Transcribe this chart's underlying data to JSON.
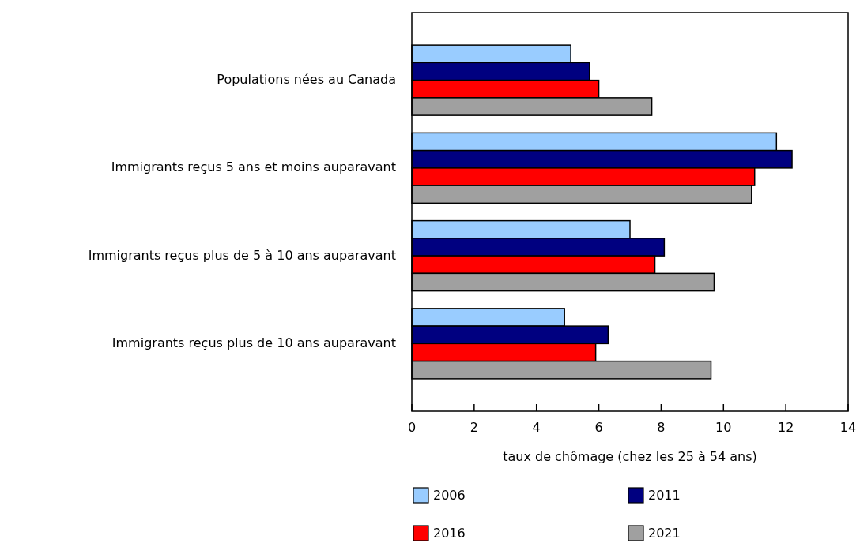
{
  "chart_data": {
    "type": "bar",
    "orientation": "horizontal",
    "xlabel": "taux de chômage (chez les 25 à 54 ans)",
    "categories": [
      "Populations nées au Canada",
      "Immigrants reçus 5 ans et moins auparavant",
      "Immigrants reçus plus de 5 à 10 ans auparavant",
      "Immigrants reçus plus de 10 ans auparavant"
    ],
    "series": [
      {
        "name": "2006",
        "color": "#99ccff",
        "values": [
          5.1,
          11.7,
          7.0,
          4.9
        ]
      },
      {
        "name": "2011",
        "color": "#000080",
        "values": [
          5.7,
          12.2,
          8.1,
          6.3
        ]
      },
      {
        "name": "2016",
        "color": "#ff0000",
        "values": [
          6.0,
          11.0,
          7.8,
          5.9
        ]
      },
      {
        "name": "2021",
        "color": "#a0a0a0",
        "values": [
          7.7,
          10.9,
          9.7,
          9.6
        ]
      }
    ],
    "xlim": [
      0,
      14
    ],
    "xticks": [
      0,
      2,
      4,
      6,
      8,
      10,
      12,
      14
    ],
    "grid": false,
    "legend": "bottom"
  }
}
